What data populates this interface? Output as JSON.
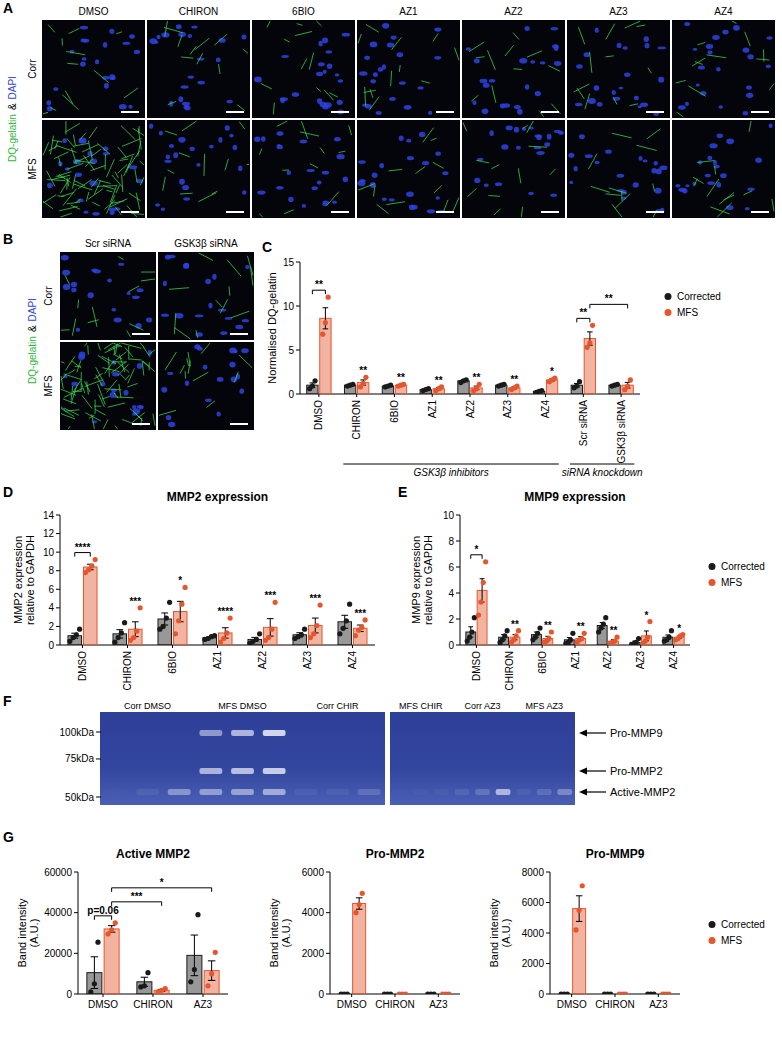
{
  "panel_labels": [
    "A",
    "B",
    "C",
    "D",
    "E",
    "F",
    "G"
  ],
  "image_panels": [
    {
      "columns": [
        "DMSO",
        "CHIRON",
        "6BIO",
        "AZ1",
        "AZ2",
        "AZ3",
        "AZ4"
      ],
      "rows": [
        "Corr",
        "MFS"
      ],
      "stain": [
        {
          "text": "DQ-gelatin",
          "color": "#2fb83a"
        },
        {
          "text": "&",
          "color": "#000000"
        },
        {
          "text": "DAPI",
          "color": "#2f4bd8"
        }
      ]
    },
    {
      "columns": [
        "Scr siRNA",
        "GSK3β siRNA"
      ],
      "rows": [
        "Corr",
        "MFS"
      ],
      "stain": [
        {
          "text": "DQ-gelatin",
          "color": "#2fb83a"
        },
        {
          "text": "&",
          "color": "#000000"
        },
        {
          "text": "DAPI",
          "color": "#2f4bd8"
        }
      ]
    }
  ],
  "gel": {
    "lanes": [
      "Corr DMSO",
      "MFS DMSO",
      "Corr CHIR",
      "MFS CHIR",
      "Corr AZ3",
      "MFS AZ3"
    ],
    "markers": [
      {
        "value": 100,
        "label": "100kDa"
      },
      {
        "value": 75,
        "label": "75kDa"
      },
      {
        "value": 50,
        "label": "50kDa"
      }
    ],
    "bands": [
      "Pro-MMP9",
      "Pro-MMP2",
      "Active-MMP2"
    ]
  },
  "chart_data": [
    {
      "type": "bar",
      "ylabel": "Normalised DQ-gelatin",
      "categories": [
        "DMSO",
        "CHIRON",
        "6BIO",
        "AZ1",
        "AZ2",
        "AZ3",
        "AZ4",
        "Scr siRNA",
        "GSK3β siRNA"
      ],
      "ylim": [
        0,
        15
      ],
      "yticks": [
        0,
        5,
        10,
        15
      ],
      "legend": "right",
      "series": [
        {
          "name": "Corrected",
          "color": "#1a1a1a",
          "values": [
            1.0,
            1.0,
            0.9,
            0.5,
            1.5,
            1.0,
            0.3,
            1.0,
            1.0
          ],
          "errors": [
            0.26,
            0.06,
            0.06,
            0.06,
            0.09,
            0.06,
            0.06,
            0.2,
            0.06
          ],
          "points": [
            [
              0.6,
              0.9,
              1.5
            ],
            [
              0.9,
              1.0,
              1.1
            ],
            [
              0.8,
              0.9,
              1.0
            ],
            [
              0.4,
              0.5,
              0.6
            ],
            [
              1.3,
              1.5,
              1.6
            ],
            [
              0.9,
              1.0,
              1.1
            ],
            [
              0.2,
              0.3,
              0.4
            ],
            [
              0.7,
              0.9,
              1.4
            ],
            [
              0.9,
              1.0,
              1.1
            ]
          ]
        },
        {
          "name": "MFS",
          "color": "#e4572e",
          "values": [
            8.6,
            1.3,
            1.0,
            0.6,
            0.7,
            0.7,
            1.6,
            6.3,
            1.0
          ],
          "errors": [
            1.2,
            0.3,
            0.06,
            0.12,
            0.2,
            0.12,
            0.12,
            0.76,
            0.32
          ],
          "points": [
            [
              6.8,
              8.1,
              11.0
            ],
            [
              0.8,
              1.2,
              1.9
            ],
            [
              0.9,
              1.0,
              1.1
            ],
            [
              0.4,
              0.6,
              0.8
            ],
            [
              0.4,
              0.6,
              1.1
            ],
            [
              0.5,
              0.7,
              0.9
            ],
            [
              1.4,
              1.6,
              1.8
            ],
            [
              5.3,
              5.8,
              7.8
            ],
            [
              0.5,
              0.9,
              1.6
            ]
          ]
        }
      ],
      "annotations": [
        {
          "text": "**",
          "from": {
            "category": 0,
            "series": 0
          },
          "to": {
            "category": 0,
            "series": 1
          }
        },
        {
          "text": "**",
          "category": 1,
          "series": 1
        },
        {
          "text": "**",
          "category": 2,
          "series": 1
        },
        {
          "text": "**",
          "category": 3,
          "series": 1
        },
        {
          "text": "**",
          "category": 4,
          "series": 1
        },
        {
          "text": "**",
          "category": 5,
          "series": 1
        },
        {
          "text": "*",
          "category": 6,
          "series": 1
        },
        {
          "text": "**",
          "from": {
            "category": 7,
            "series": 0
          },
          "to": {
            "category": 7,
            "series": 1
          }
        },
        {
          "text": "**",
          "from": {
            "category": 7,
            "series": 1
          },
          "to": {
            "category": 8,
            "series": 1
          }
        }
      ],
      "groups": [
        {
          "text": "GSK3β inhibitors",
          "from": 1,
          "to": 6
        },
        {
          "text": "siRNA knockdown",
          "from": 7,
          "to": 8
        }
      ]
    },
    {
      "type": "bar",
      "title": "MMP2 expression",
      "ylabel": [
        "MMP2 expression",
        "relative to GAPDH"
      ],
      "categories": [
        "DMSO",
        "CHIRON",
        "6BIO",
        "AZ1",
        "AZ2",
        "AZ3",
        "AZ4"
      ],
      "ylim": [
        0,
        14
      ],
      "yticks": [
        0,
        2,
        4,
        6,
        8,
        10,
        12,
        14
      ],
      "series": [
        {
          "color": "#1a1a1a",
          "values": [
            1.0,
            1.2,
            2.8,
            0.8,
            0.6,
            1.1,
            2.5
          ],
          "errors": [
            0.27,
            0.45,
            0.65,
            0.09,
            0.22,
            0.22,
            0.7
          ],
          "points": [
            [
              0.4,
              0.8,
              1.1,
              1.7
            ],
            [
              0.3,
              0.8,
              1.3,
              2.4
            ],
            [
              1.7,
              2.0,
              2.9,
              4.6
            ],
            [
              0.6,
              0.7,
              0.9,
              1.0
            ],
            [
              0.2,
              0.4,
              0.6,
              1.2
            ],
            [
              0.7,
              0.9,
              1.1,
              1.7
            ],
            [
              1.2,
              1.8,
              2.6,
              4.4
            ]
          ]
        },
        {
          "color": "#e4572e",
          "values": [
            8.4,
            1.7,
            3.6,
            1.3,
            1.9,
            2.1,
            1.8
          ],
          "errors": [
            0.3,
            0.8,
            1.1,
            0.56,
            0.94,
            0.8,
            0.35
          ],
          "points": [
            [
              7.8,
              8.1,
              8.5,
              9.2
            ],
            [
              0.5,
              0.8,
              1.5,
              4.0
            ],
            [
              1.2,
              2.6,
              4.4,
              6.2
            ],
            [
              0.3,
              0.7,
              1.3,
              2.9
            ],
            [
              0.5,
              0.8,
              1.7,
              4.6
            ],
            [
              0.8,
              1.2,
              2.1,
              4.3
            ],
            [
              1.0,
              1.6,
              1.9,
              2.7
            ]
          ]
        }
      ],
      "annotations": [
        {
          "text": "****",
          "from": {
            "category": 0,
            "series": 0
          },
          "to": {
            "category": 0,
            "series": 1
          }
        },
        {
          "text": "***",
          "category": 1,
          "series": 1
        },
        {
          "text": "*",
          "category": 2,
          "series": 1
        },
        {
          "text": "****",
          "category": 3,
          "series": 1
        },
        {
          "text": "***",
          "category": 4,
          "series": 1
        },
        {
          "text": "***",
          "category": 5,
          "series": 1
        },
        {
          "text": "***",
          "category": 6,
          "series": 1
        }
      ]
    },
    {
      "type": "bar",
      "title": "MMP9 expression",
      "ylabel": [
        "MMP9 expression",
        "relative to GAPDH"
      ],
      "categories": [
        "DMSO",
        "CHIRON",
        "6BIO",
        "AZ1",
        "AZ2",
        "AZ3",
        "AZ4"
      ],
      "ylim": [
        0,
        10
      ],
      "yticks": [
        0,
        2,
        4,
        6,
        8,
        10
      ],
      "legend": "right",
      "series": [
        {
          "name": "Corrected",
          "color": "#1a1a1a",
          "values": [
            1.0,
            0.6,
            0.8,
            0.4,
            1.5,
            0.2,
            0.6
          ],
          "errors": [
            0.4,
            0.2,
            0.2,
            0.17,
            0.23,
            0.11,
            0.17
          ],
          "points": [
            [
              0.3,
              0.6,
              1.0,
              2.1
            ],
            [
              0.2,
              0.4,
              0.7,
              1.1
            ],
            [
              0.4,
              0.6,
              0.9,
              1.3
            ],
            [
              0.1,
              0.2,
              0.4,
              0.9
            ],
            [
              1.0,
              1.3,
              1.6,
              2.1
            ],
            [
              0.0,
              0.1,
              0.2,
              0.5
            ],
            [
              0.3,
              0.4,
              0.6,
              1.1
            ]
          ]
        },
        {
          "name": "MFS",
          "color": "#e4572e",
          "values": [
            4.2,
            0.6,
            0.5,
            0.5,
            0.3,
            0.7,
            0.6
          ],
          "errors": [
            0.9,
            0.2,
            0.17,
            0.15,
            0.11,
            0.38,
            0.09
          ],
          "points": [
            [
              2.3,
              3.3,
              4.8,
              6.4
            ],
            [
              0.2,
              0.4,
              0.7,
              1.1
            ],
            [
              0.2,
              0.3,
              0.5,
              1.0
            ],
            [
              0.2,
              0.4,
              0.5,
              0.9
            ],
            [
              0.1,
              0.2,
              0.3,
              0.6
            ],
            [
              0.1,
              0.3,
              0.6,
              1.8
            ],
            [
              0.4,
              0.5,
              0.7,
              0.8
            ]
          ]
        }
      ],
      "annotations": [
        {
          "text": "*",
          "from": {
            "category": 0,
            "series": 0
          },
          "to": {
            "category": 0,
            "series": 1
          }
        },
        {
          "text": "**",
          "category": 1,
          "series": 1
        },
        {
          "text": "**",
          "category": 2,
          "series": 1
        },
        {
          "text": "**",
          "category": 3,
          "series": 1
        },
        {
          "text": "**",
          "category": 4,
          "series": 1
        },
        {
          "text": "*",
          "category": 5,
          "series": 1
        },
        {
          "text": "*",
          "category": 6,
          "series": 1
        }
      ]
    },
    {
      "type": "bar",
      "title": "Active MMP2",
      "ylabel": [
        "Band intensity",
        "(A.U.)"
      ],
      "categories": [
        "DMSO",
        "CHIRON",
        "AZ3"
      ],
      "ylim": [
        0,
        60000
      ],
      "yticks": [
        0,
        20000,
        40000,
        60000
      ],
      "series": [
        {
          "color": "#1a1a1a",
          "values": [
            10500,
            6000,
            19000
          ],
          "errors": [
            7800,
            2250,
            10000
          ],
          "points": [
            [
              1000,
              5000,
              25500
            ],
            [
              3500,
              4000,
              10500
            ],
            [
              6000,
              12000,
              39000
            ]
          ]
        },
        {
          "color": "#e4572e",
          "values": [
            32000,
            1800,
            11500
          ],
          "errors": [
            1600,
            460,
            4800
          ],
          "points": [
            [
              29500,
              31500,
              35000
            ],
            [
              1000,
              1800,
              2600
            ],
            [
              4000,
              10000,
              20500
            ]
          ]
        }
      ],
      "annotations": [
        {
          "text": "p=0.06",
          "from": {
            "category": 0,
            "series": 0
          },
          "to": {
            "category": 0,
            "series": 1
          }
        },
        {
          "text": "***",
          "from": {
            "category": 0,
            "series": 1
          },
          "to": {
            "category": 1,
            "series": 1
          }
        },
        {
          "text": "*",
          "from": {
            "category": 0,
            "series": 1
          },
          "to": {
            "category": 2,
            "series": 1
          }
        }
      ]
    },
    {
      "type": "bar",
      "title": "Pro-MMP2",
      "ylabel": [
        "Band intensity",
        "(A.U.)"
      ],
      "categories": [
        "DMSO",
        "CHIRON",
        "AZ3"
      ],
      "ylim": [
        0,
        6000
      ],
      "yticks": [
        0,
        2000,
        4000,
        6000
      ],
      "series": [
        {
          "color": "#1a1a1a",
          "values": [
            0,
            0,
            0
          ],
          "errors": [
            0,
            0,
            0
          ],
          "points": [
            [
              0,
              0,
              0
            ],
            [
              0,
              0,
              0
            ],
            [
              0,
              0,
              0
            ]
          ]
        },
        {
          "color": "#e4572e",
          "values": [
            4450,
            0,
            0
          ],
          "errors": [
            280,
            0,
            0
          ],
          "points": [
            [
              4000,
              4400,
              4950
            ],
            [
              0,
              0,
              0
            ],
            [
              0,
              0,
              0
            ]
          ]
        }
      ]
    },
    {
      "type": "bar",
      "title": "Pro-MMP9",
      "ylabel": [
        "Band intensity",
        "(A.U.)"
      ],
      "categories": [
        "DMSO",
        "CHIRON",
        "AZ3"
      ],
      "ylim": [
        0,
        8000
      ],
      "yticks": [
        0,
        2000,
        4000,
        6000,
        8000
      ],
      "legend": "right",
      "series": [
        {
          "name": "Corrected",
          "color": "#1a1a1a",
          "values": [
            0,
            0,
            0
          ],
          "errors": [
            0,
            0,
            0
          ],
          "points": [
            [
              0,
              0,
              0
            ],
            [
              0,
              0,
              0
            ],
            [
              0,
              0,
              0
            ]
          ]
        },
        {
          "name": "MFS",
          "color": "#e4572e",
          "values": [
            5600,
            0,
            0
          ],
          "errors": [
            840,
            0,
            0
          ],
          "points": [
            [
              4200,
              5500,
              7100
            ],
            [
              0,
              0,
              0
            ],
            [
              0,
              0,
              0
            ]
          ]
        }
      ]
    }
  ]
}
